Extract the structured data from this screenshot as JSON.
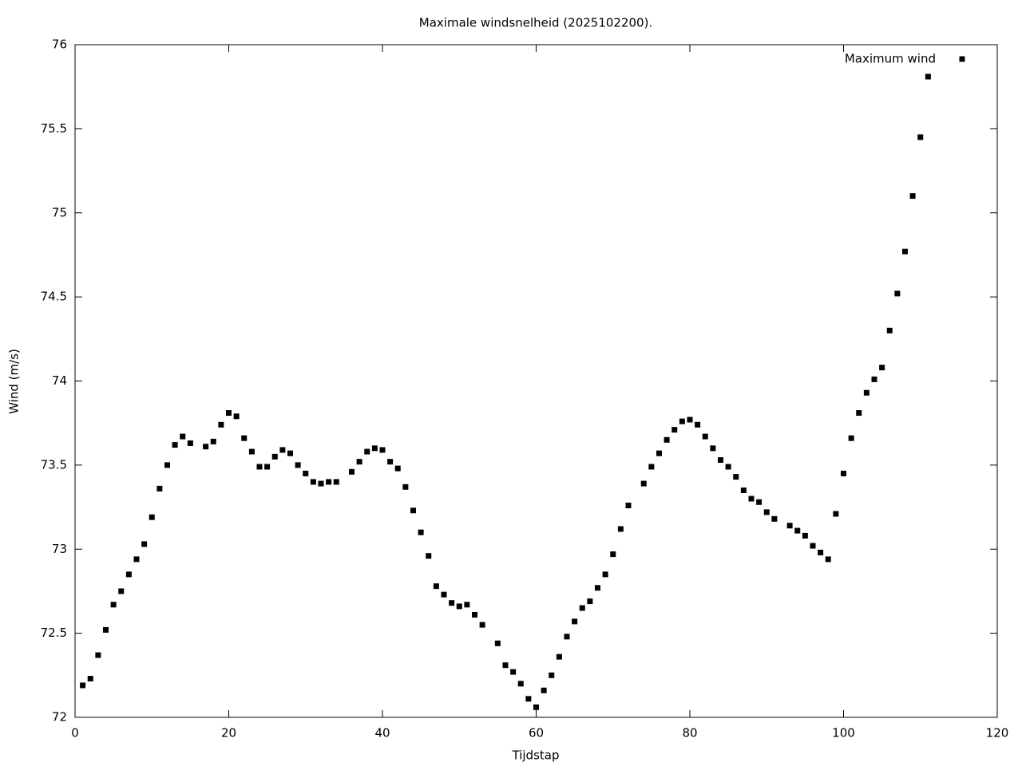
{
  "chart_data": {
    "type": "scatter",
    "title": "Maximale windsnelheid (2025102200).",
    "x_label": "Tijdstap",
    "y_label": "Wind (m/s)",
    "xlim": [
      0,
      120
    ],
    "xticks": [
      0,
      20,
      40,
      60,
      80,
      100,
      120
    ],
    "ylim": [
      72,
      76
    ],
    "yticks": [
      72,
      72.5,
      73,
      73.5,
      74,
      74.5,
      75,
      75.5,
      76
    ],
    "legend_position": "top-right",
    "series": [
      {
        "name": "Maximum wind",
        "color": "#000000",
        "x": [
          1,
          2,
          3,
          4,
          5,
          6,
          7,
          8,
          9,
          10,
          11,
          12,
          13,
          14,
          15,
          17,
          18,
          19,
          20,
          21,
          22,
          23,
          24,
          25,
          26,
          27,
          28,
          29,
          30,
          31,
          32,
          33,
          34,
          36,
          37,
          38,
          39,
          40,
          41,
          42,
          43,
          44,
          45,
          46,
          47,
          48,
          49,
          50,
          51,
          52,
          53,
          55,
          56,
          57,
          58,
          59,
          60,
          61,
          62,
          63,
          64,
          65,
          66,
          67,
          68,
          69,
          70,
          71,
          72,
          74,
          75,
          76,
          77,
          78,
          79,
          80,
          81,
          82,
          83,
          84,
          85,
          86,
          87,
          88,
          89,
          90,
          91,
          93,
          94,
          95,
          96,
          97,
          98,
          99,
          100,
          101,
          102,
          103,
          104,
          105,
          106,
          107,
          108,
          109,
          110,
          111
        ],
        "values": [
          72.19,
          72.23,
          72.37,
          72.52,
          72.67,
          72.75,
          72.85,
          72.94,
          73.03,
          73.19,
          73.36,
          73.5,
          73.62,
          73.67,
          73.63,
          73.61,
          73.64,
          73.74,
          73.81,
          73.79,
          73.66,
          73.58,
          73.49,
          73.49,
          73.55,
          73.59,
          73.57,
          73.5,
          73.45,
          73.4,
          73.39,
          73.4,
          73.4,
          73.46,
          73.52,
          73.58,
          73.6,
          73.59,
          73.52,
          73.48,
          73.37,
          73.23,
          73.1,
          72.96,
          72.78,
          72.73,
          72.68,
          72.66,
          72.67,
          72.61,
          72.55,
          72.44,
          72.31,
          72.27,
          72.2,
          72.11,
          72.06,
          72.16,
          72.25,
          72.36,
          72.48,
          72.57,
          72.65,
          72.69,
          72.77,
          72.85,
          72.97,
          73.12,
          73.26,
          73.39,
          73.49,
          73.57,
          73.65,
          73.71,
          73.76,
          73.77,
          73.74,
          73.67,
          73.6,
          73.53,
          73.49,
          73.43,
          73.35,
          73.3,
          73.28,
          73.22,
          73.18,
          73.14,
          73.11,
          73.08,
          73.02,
          72.98,
          72.94,
          73.21,
          73.45,
          73.66,
          73.81,
          73.93,
          74.01,
          74.08,
          74.3,
          74.52,
          74.77,
          75.1,
          75.45,
          75.81
        ]
      }
    ]
  }
}
